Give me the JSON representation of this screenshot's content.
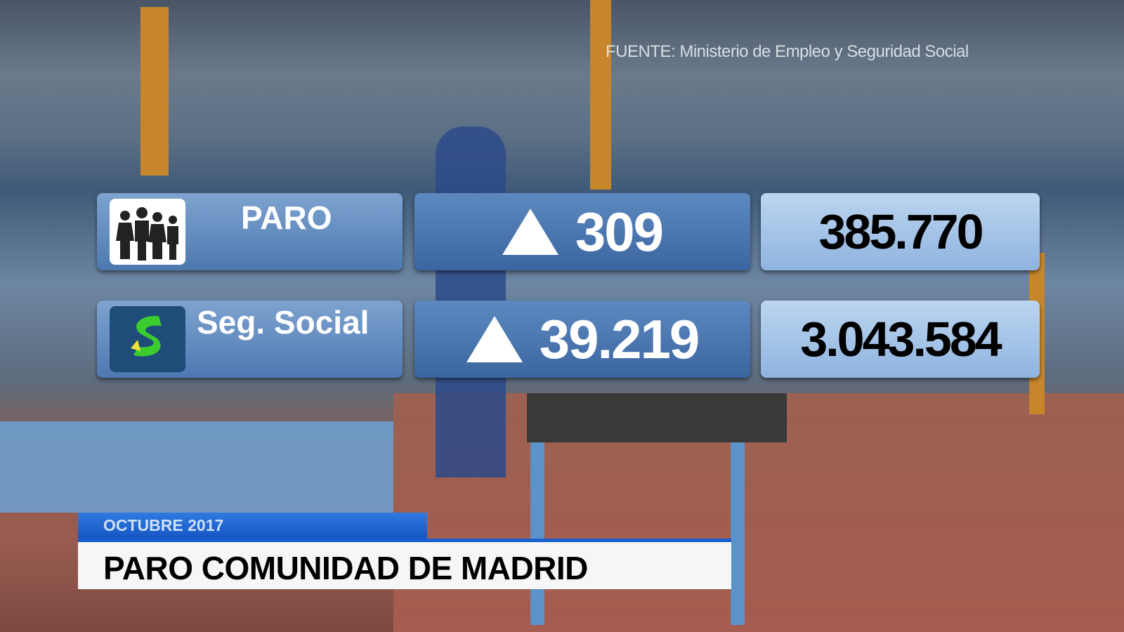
{
  "source": "FUENTE: Ministerio de Empleo y Seguridad Social",
  "rows": [
    {
      "label": "PARO",
      "icon": "people-icon",
      "change_direction": "up",
      "change": "309",
      "total": "385.770"
    },
    {
      "label": "Seg. Social",
      "icon": "social-security-logo-icon",
      "change_direction": "up",
      "change": "39.219",
      "total": "3.043.584"
    }
  ],
  "lower_third": {
    "date": "OCTUBRE 2017",
    "title": "PARO COMUNIDAD DE MADRID"
  },
  "colors": {
    "accent_blue": "#1a5fd0",
    "logo_green": "#3ccc2e"
  }
}
